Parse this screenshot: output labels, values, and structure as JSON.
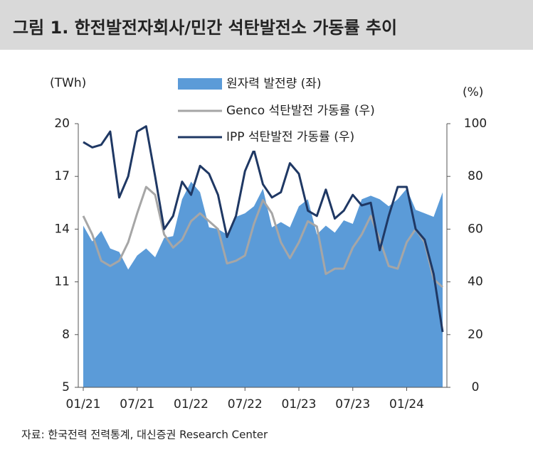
{
  "figure_title": "그림 1.  한전발전자회사/민간 석탄발전소 가동률 추이",
  "source": "자료: 한국전력 전력통계, 대신증권 Research Center",
  "chart_data": {
    "type": "area_line",
    "y_label": "(TWh)",
    "y2_label": "(%)",
    "categories": [
      "01/21",
      null,
      null,
      null,
      null,
      null,
      "07/21",
      null,
      null,
      null,
      null,
      null,
      "01/22",
      null,
      null,
      null,
      null,
      null,
      "07/22",
      null,
      null,
      null,
      null,
      null,
      "01/23",
      null,
      null,
      null,
      null,
      null,
      "07/23",
      null,
      null,
      null,
      null,
      null,
      "01/24",
      null,
      null,
      null,
      null
    ],
    "ylim": [
      5,
      20
    ],
    "yticks": [
      5,
      8,
      11,
      14,
      17,
      20
    ],
    "y2lim": [
      0,
      100
    ],
    "y2ticks": [
      0,
      20,
      40,
      60,
      80,
      100
    ],
    "grid": false,
    "legend": "top",
    "series": [
      {
        "name": "원자력 발전량 (좌)",
        "color": "#5b9bd8",
        "kind": "area",
        "values": [
          14.2,
          13.3,
          13.9,
          12.9,
          12.7,
          11.7,
          12.5,
          12.9,
          12.4,
          13.5,
          13.6,
          15.7,
          16.7,
          16.1,
          14.1,
          14.0,
          13.7,
          14.7,
          14.9,
          15.3,
          16.3,
          14.1,
          14.4,
          14.1,
          15.3,
          15.7,
          13.7,
          14.2,
          13.8,
          14.5,
          14.3,
          15.7,
          15.9,
          15.7,
          15.3,
          15.7,
          16.3,
          15.1,
          14.9,
          14.7,
          16.1
        ]
      },
      {
        "name": "Genco 석탄발전 가동률 (우)",
        "color": "#a6a6a6",
        "kind": "line",
        "axis": "y2",
        "values": [
          65,
          58,
          48,
          46,
          48,
          55,
          66,
          76,
          73,
          58,
          53,
          56,
          63,
          66,
          63,
          60,
          47,
          48,
          50,
          62,
          71,
          66,
          55,
          49,
          55,
          63,
          61,
          43,
          45,
          45,
          53,
          58,
          65,
          56,
          46,
          45,
          55,
          60,
          55,
          41,
          38
        ]
      },
      {
        "name": "IPP 석탄발전 가동률 (우)",
        "color": "#1f3864",
        "kind": "line",
        "axis": "y2",
        "values": [
          93,
          91,
          92,
          97,
          72,
          80,
          97,
          99,
          80,
          60,
          65,
          78,
          73,
          84,
          81,
          73,
          57,
          65,
          82,
          90,
          77,
          72,
          74,
          85,
          81,
          67,
          65,
          75,
          64,
          67,
          73,
          69,
          70,
          52,
          65,
          76,
          76,
          60,
          56,
          43,
          21
        ]
      }
    ]
  }
}
